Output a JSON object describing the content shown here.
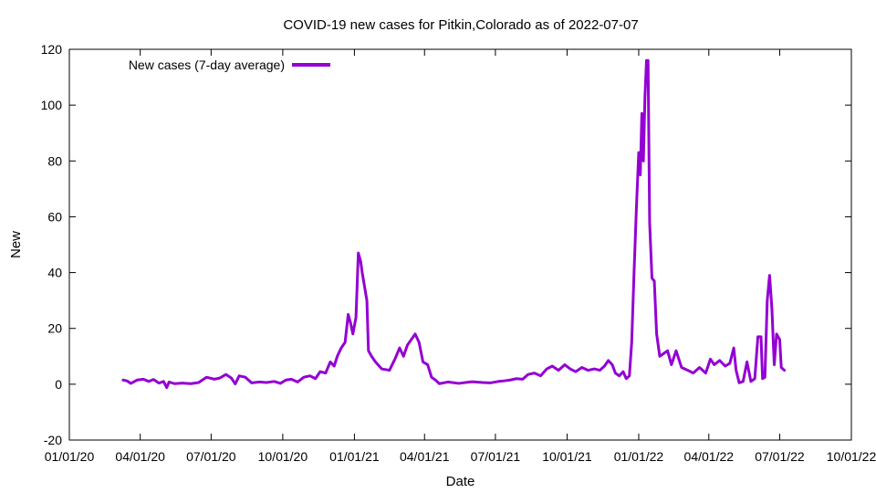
{
  "chart_data": {
    "type": "line",
    "title": "COVID-19 new cases for Pitkin,Colorado as of 2022-07-07",
    "xlabel": "Date",
    "ylabel": "New",
    "ylim": [
      -20,
      120
    ],
    "xlim": [
      "2020-01-01",
      "2022-10-01"
    ],
    "yticks": [
      "-20",
      "0",
      "20",
      "40",
      "60",
      "80",
      "100",
      "120"
    ],
    "xticks": [
      {
        "date": "2020-01-01",
        "label": "01/01/20"
      },
      {
        "date": "2020-04-01",
        "label": "04/01/20"
      },
      {
        "date": "2020-07-01",
        "label": "07/01/20"
      },
      {
        "date": "2020-10-01",
        "label": "10/01/20"
      },
      {
        "date": "2021-01-01",
        "label": "01/01/21"
      },
      {
        "date": "2021-04-01",
        "label": "04/01/21"
      },
      {
        "date": "2021-07-01",
        "label": "07/01/21"
      },
      {
        "date": "2021-10-01",
        "label": "10/01/21"
      },
      {
        "date": "2022-01-01",
        "label": "01/01/22"
      },
      {
        "date": "2022-04-01",
        "label": "04/01/22"
      },
      {
        "date": "2022-07-01",
        "label": "07/01/22"
      },
      {
        "date": "2022-10-01",
        "label": "10/01/22"
      }
    ],
    "grid": false,
    "legend_position": "top-left",
    "series": [
      {
        "name": "New cases (7-day average)",
        "color": "#9400d3",
        "points": [
          [
            "2020-03-10",
            1.5
          ],
          [
            "2020-03-15",
            1.2
          ],
          [
            "2020-03-20",
            0.3
          ],
          [
            "2020-03-28",
            1.5
          ],
          [
            "2020-04-05",
            1.8
          ],
          [
            "2020-04-12",
            1.0
          ],
          [
            "2020-04-18",
            1.7
          ],
          [
            "2020-04-25",
            0.4
          ],
          [
            "2020-05-01",
            1.0
          ],
          [
            "2020-05-05",
            -1.2
          ],
          [
            "2020-05-08",
            0.8
          ],
          [
            "2020-05-15",
            0.2
          ],
          [
            "2020-05-25",
            0.4
          ],
          [
            "2020-06-05",
            0.2
          ],
          [
            "2020-06-15",
            0.6
          ],
          [
            "2020-06-25",
            2.5
          ],
          [
            "2020-07-05",
            1.8
          ],
          [
            "2020-07-12",
            2.2
          ],
          [
            "2020-07-20",
            3.5
          ],
          [
            "2020-07-27",
            2.2
          ],
          [
            "2020-08-01",
            0.1
          ],
          [
            "2020-08-06",
            3.0
          ],
          [
            "2020-08-14",
            2.5
          ],
          [
            "2020-08-22",
            0.5
          ],
          [
            "2020-09-01",
            0.8
          ],
          [
            "2020-09-10",
            0.6
          ],
          [
            "2020-09-20",
            1.0
          ],
          [
            "2020-09-28",
            0.3
          ],
          [
            "2020-10-05",
            1.5
          ],
          [
            "2020-10-12",
            1.8
          ],
          [
            "2020-10-20",
            0.8
          ],
          [
            "2020-10-28",
            2.5
          ],
          [
            "2020-11-05",
            3.0
          ],
          [
            "2020-11-12",
            2.0
          ],
          [
            "2020-11-18",
            4.5
          ],
          [
            "2020-11-25",
            4.0
          ],
          [
            "2020-12-01",
            8.0
          ],
          [
            "2020-12-06",
            6.5
          ],
          [
            "2020-12-10",
            10.0
          ],
          [
            "2020-12-15",
            13.0
          ],
          [
            "2020-12-20",
            15.0
          ],
          [
            "2020-12-24",
            25.0
          ],
          [
            "2020-12-27",
            22.0
          ],
          [
            "2020-12-30",
            18.0
          ],
          [
            "2021-01-03",
            24.0
          ],
          [
            "2021-01-06",
            47.0
          ],
          [
            "2021-01-09",
            44.0
          ],
          [
            "2021-01-11",
            40.0
          ],
          [
            "2021-01-14",
            35.0
          ],
          [
            "2021-01-17",
            30.0
          ],
          [
            "2021-01-19",
            12.0
          ],
          [
            "2021-01-23",
            10.0
          ],
          [
            "2021-01-28",
            8.0
          ],
          [
            "2021-02-05",
            5.5
          ],
          [
            "2021-02-15",
            5.0
          ],
          [
            "2021-02-22",
            9.0
          ],
          [
            "2021-02-28",
            13.0
          ],
          [
            "2021-03-05",
            10.0
          ],
          [
            "2021-03-10",
            14.0
          ],
          [
            "2021-03-15",
            16.0
          ],
          [
            "2021-03-20",
            18.0
          ],
          [
            "2021-03-25",
            15.0
          ],
          [
            "2021-03-30",
            8.0
          ],
          [
            "2021-04-05",
            7.0
          ],
          [
            "2021-04-10",
            2.5
          ],
          [
            "2021-04-15",
            1.5
          ],
          [
            "2021-04-20",
            0.2
          ],
          [
            "2021-05-01",
            0.8
          ],
          [
            "2021-05-15",
            0.3
          ],
          [
            "2021-06-01",
            0.9
          ],
          [
            "2021-06-15",
            0.6
          ],
          [
            "2021-06-25",
            0.5
          ],
          [
            "2021-07-05",
            1.0
          ],
          [
            "2021-07-12",
            1.2
          ],
          [
            "2021-07-20",
            1.5
          ],
          [
            "2021-07-28",
            2.0
          ],
          [
            "2021-08-05",
            1.8
          ],
          [
            "2021-08-12",
            3.5
          ],
          [
            "2021-08-20",
            4.0
          ],
          [
            "2021-08-28",
            3.0
          ],
          [
            "2021-09-05",
            5.5
          ],
          [
            "2021-09-12",
            6.5
          ],
          [
            "2021-09-20",
            5.0
          ],
          [
            "2021-09-28",
            7.0
          ],
          [
            "2021-10-05",
            5.5
          ],
          [
            "2021-10-12",
            4.5
          ],
          [
            "2021-10-20",
            6.0
          ],
          [
            "2021-10-28",
            5.0
          ],
          [
            "2021-11-05",
            5.5
          ],
          [
            "2021-11-12",
            5.0
          ],
          [
            "2021-11-18",
            6.5
          ],
          [
            "2021-11-23",
            8.5
          ],
          [
            "2021-11-28",
            7.0
          ],
          [
            "2021-12-02",
            4.0
          ],
          [
            "2021-12-07",
            3.0
          ],
          [
            "2021-12-12",
            4.5
          ],
          [
            "2021-12-16",
            2.0
          ],
          [
            "2021-12-20",
            3.0
          ],
          [
            "2021-12-23",
            15.0
          ],
          [
            "2021-12-26",
            40.0
          ],
          [
            "2021-12-29",
            63.0
          ],
          [
            "2022-01-01",
            83.0
          ],
          [
            "2022-01-03",
            75.0
          ],
          [
            "2022-01-05",
            97.0
          ],
          [
            "2022-01-07",
            80.0
          ],
          [
            "2022-01-09",
            103.0
          ],
          [
            "2022-01-11",
            116.0
          ],
          [
            "2022-01-13",
            116.0
          ],
          [
            "2022-01-15",
            58.0
          ],
          [
            "2022-01-18",
            38.0
          ],
          [
            "2022-01-21",
            37.0
          ],
          [
            "2022-01-24",
            18.0
          ],
          [
            "2022-01-28",
            10.0
          ],
          [
            "2022-02-02",
            11.0
          ],
          [
            "2022-02-07",
            12.0
          ],
          [
            "2022-02-12",
            7.0
          ],
          [
            "2022-02-18",
            12.0
          ],
          [
            "2022-02-25",
            6.0
          ],
          [
            "2022-03-05",
            5.0
          ],
          [
            "2022-03-12",
            4.0
          ],
          [
            "2022-03-20",
            6.0
          ],
          [
            "2022-03-28",
            4.0
          ],
          [
            "2022-04-03",
            9.0
          ],
          [
            "2022-04-08",
            7.0
          ],
          [
            "2022-04-15",
            8.5
          ],
          [
            "2022-04-22",
            6.5
          ],
          [
            "2022-04-28",
            7.5
          ],
          [
            "2022-05-03",
            13.0
          ],
          [
            "2022-05-06",
            5.0
          ],
          [
            "2022-05-10",
            0.5
          ],
          [
            "2022-05-15",
            1.0
          ],
          [
            "2022-05-20",
            8.0
          ],
          [
            "2022-05-25",
            1.0
          ],
          [
            "2022-05-30",
            2.0
          ],
          [
            "2022-06-03",
            17.0
          ],
          [
            "2022-06-07",
            17.0
          ],
          [
            "2022-06-09",
            2.0
          ],
          [
            "2022-06-12",
            2.5
          ],
          [
            "2022-06-15",
            30.0
          ],
          [
            "2022-06-18",
            39.0
          ],
          [
            "2022-06-21",
            27.0
          ],
          [
            "2022-06-24",
            7.0
          ],
          [
            "2022-06-27",
            18.0
          ],
          [
            "2022-07-01",
            16.0
          ],
          [
            "2022-07-03",
            6.0
          ],
          [
            "2022-07-07",
            5.0
          ]
        ]
      }
    ]
  }
}
